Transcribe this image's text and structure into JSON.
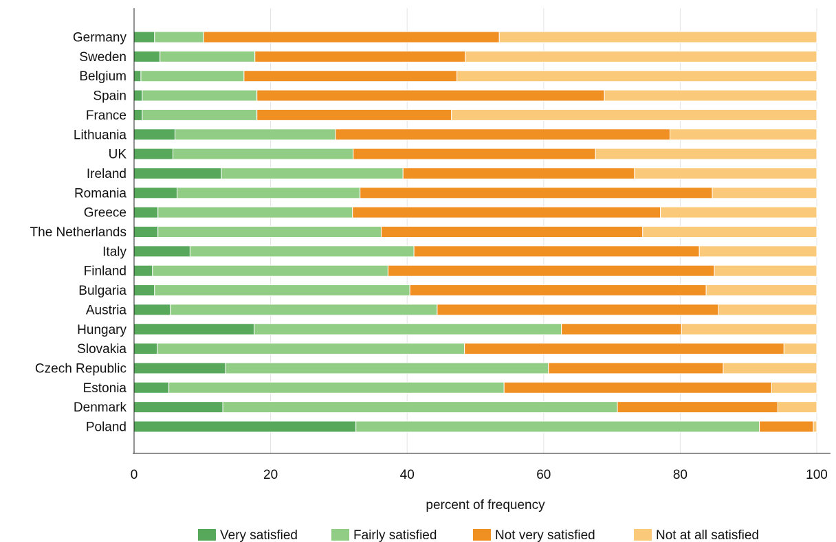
{
  "chart_data": {
    "type": "bar",
    "orientation": "horizontal",
    "stacked": true,
    "categories": [
      "Germany",
      "Sweden",
      "Belgium",
      "Spain",
      "France",
      "Lithuania",
      "UK",
      "Ireland",
      "Romania",
      "Greece",
      "The Netherlands",
      "Italy",
      "Finland",
      "Bulgaria",
      "Austria",
      "Hungary",
      "Slovakia",
      "Czech Republic",
      "Estonia",
      "Denmark",
      "Poland"
    ],
    "series": [
      {
        "name": "Very satisfied",
        "color": "#57a85a",
        "values": [
          3.0,
          3.8,
          1.0,
          1.2,
          1.2,
          6.0,
          5.7,
          12.8,
          6.3,
          3.5,
          3.5,
          8.2,
          2.7,
          3.0,
          5.3,
          17.6,
          3.4,
          13.4,
          5.1,
          13.0,
          32.5
        ]
      },
      {
        "name": "Fairly satisfied",
        "color": "#92cd86",
        "values": [
          7.2,
          13.9,
          15.1,
          16.8,
          16.8,
          23.5,
          26.4,
          26.6,
          26.8,
          28.5,
          32.7,
          32.8,
          34.5,
          37.4,
          39.1,
          45.0,
          45.0,
          47.3,
          49.1,
          57.8,
          59.1
        ]
      },
      {
        "name": "Not very satisfied",
        "color": "#f08f22",
        "values": [
          43.3,
          30.8,
          31.2,
          50.9,
          28.5,
          49.0,
          35.5,
          33.9,
          51.6,
          45.1,
          38.3,
          41.8,
          47.8,
          43.4,
          41.2,
          17.6,
          46.8,
          25.6,
          39.2,
          23.5,
          7.9
        ]
      },
      {
        "name": "Not at all satisfied",
        "color": "#fbc97a",
        "values": [
          46.5,
          51.5,
          52.7,
          31.1,
          53.5,
          21.5,
          32.4,
          26.7,
          15.3,
          22.9,
          25.5,
          17.2,
          15.0,
          16.2,
          14.4,
          19.8,
          4.8,
          13.7,
          6.6,
          5.7,
          0.5
        ]
      }
    ],
    "xlabel": "percent of frequency",
    "ylabel": "",
    "xlim": [
      0,
      100
    ],
    "xticks": [
      0,
      20,
      40,
      60,
      80,
      100
    ],
    "grid": "vertical",
    "legend_position": "bottom"
  }
}
